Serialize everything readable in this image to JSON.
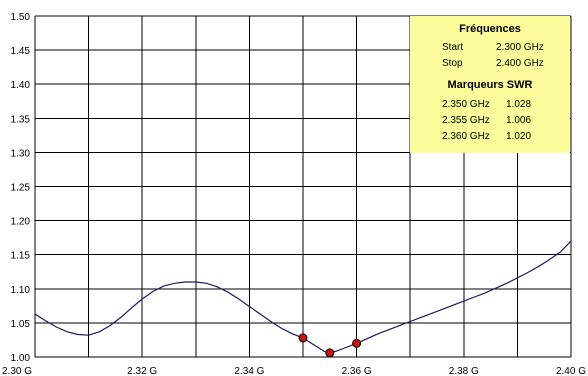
{
  "chart_data": {
    "type": "line",
    "x_tick_labels": [
      "2.30 G",
      "2.32 G",
      "2.34 G",
      "2.36 G",
      "2.38 G",
      "2.40 G"
    ],
    "y_tick_labels": [
      "1.50",
      "1.45",
      "1.40",
      "1.35",
      "1.30",
      "1.25",
      "1.20",
      "1.15",
      "1.10",
      "1.05",
      "1.00"
    ],
    "xlim": [
      2.3,
      2.4
    ],
    "ylim": [
      1.0,
      1.5
    ],
    "grid": true,
    "x_grid_step": 0.01,
    "y_grid_step": 0.05,
    "colors": {
      "curve": "#1a1a66",
      "marker": "#cc1111",
      "grid": "#000000",
      "box": "#fcfc9c"
    },
    "series": [
      {
        "x": [
          2.3,
          2.302,
          2.304,
          2.306,
          2.308,
          2.31,
          2.312,
          2.314,
          2.316,
          2.318,
          2.32,
          2.322,
          2.324,
          2.326,
          2.328,
          2.33,
          2.332,
          2.334,
          2.336,
          2.338,
          2.34,
          2.342,
          2.344,
          2.346,
          2.348,
          2.35,
          2.352,
          2.354,
          2.355,
          2.356,
          2.358,
          2.36,
          2.362,
          2.364,
          2.366,
          2.368,
          2.37,
          2.372,
          2.374,
          2.376,
          2.378,
          2.38,
          2.382,
          2.384,
          2.386,
          2.388,
          2.39,
          2.392,
          2.394,
          2.396,
          2.398,
          2.4
        ],
        "y": [
          1.063,
          1.053,
          1.044,
          1.037,
          1.033,
          1.032,
          1.037,
          1.046,
          1.058,
          1.072,
          1.085,
          1.096,
          1.104,
          1.108,
          1.11,
          1.11,
          1.108,
          1.103,
          1.095,
          1.085,
          1.074,
          1.063,
          1.052,
          1.042,
          1.034,
          1.028,
          1.018,
          1.008,
          1.006,
          1.008,
          1.014,
          1.02,
          1.027,
          1.034,
          1.04,
          1.046,
          1.052,
          1.058,
          1.064,
          1.07,
          1.076,
          1.082,
          1.088,
          1.094,
          1.101,
          1.108,
          1.116,
          1.124,
          1.133,
          1.143,
          1.154,
          1.17
        ]
      }
    ],
    "markers": [
      {
        "x": 2.35,
        "y": 1.028
      },
      {
        "x": 2.355,
        "y": 1.006
      },
      {
        "x": 2.36,
        "y": 1.02
      }
    ]
  },
  "info_box": {
    "title_freq": "Fréquences",
    "start_label": "Start",
    "start_value": "2.300 GHz",
    "stop_label": "Stop",
    "stop_value": "2.400 GHz",
    "title_markers": "Marqueurs SWR",
    "markers": [
      {
        "freq": "2.350 GHz",
        "swr": "1.028"
      },
      {
        "freq": "2.355 GHz",
        "swr": "1.006"
      },
      {
        "freq": "2.360 GHz",
        "swr": "1.020"
      }
    ]
  }
}
